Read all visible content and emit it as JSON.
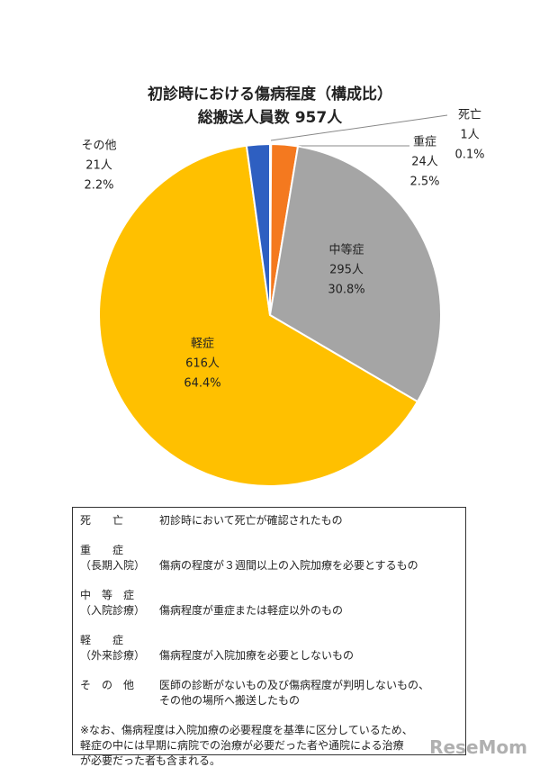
{
  "chart_data": {
    "type": "pie",
    "title": "初診時における傷病程度（構成比）",
    "subtitle": "総搬送人員数 957人",
    "categories": [
      "死亡",
      "重症",
      "中等症",
      "軽症",
      "その他"
    ],
    "values": [
      1,
      24,
      295,
      616,
      21
    ],
    "value_labels": [
      "1人",
      "24人",
      "295人",
      "616人",
      "21人"
    ],
    "percent_labels": [
      "0.1%",
      "2.5%",
      "30.8%",
      "64.4%",
      "2.2%"
    ],
    "colors": [
      "#c00000",
      "#f4791f",
      "#a5a5a5",
      "#ffc000",
      "#2e5fc1"
    ]
  },
  "definitions": [
    {
      "term": "死　　亡",
      "lines": [
        [
          "",
          "初診時において死亡が確認されたもの"
        ]
      ]
    },
    {
      "term": "重　　症",
      "lines": [
        [
          "（長期入院）",
          "傷病の程度が３週間以上の入院加療を必要とするもの"
        ]
      ]
    },
    {
      "term": "中　等　症",
      "lines": [
        [
          "（入院診療）",
          "傷病程度が重症または軽症以外のもの"
        ]
      ]
    },
    {
      "term": "軽　　症",
      "lines": [
        [
          "（外来診療）",
          "傷病程度が入院加療を必要としないもの"
        ]
      ]
    },
    {
      "term": "そ　の　他",
      "lines": [
        [
          "",
          "医師の診断がないもの及び傷病程度が判明しないもの、"
        ],
        [
          "",
          "その他の場所へ搬送したもの"
        ]
      ]
    }
  ],
  "note": [
    "※なお、傷病程度は入院加療の必要程度を基準に区分しているため、",
    "軽症の中には早期に病院での治療が必要だった者や通院による治療",
    "が必要だった者も含まれる。"
  ],
  "watermark": "ReseMom"
}
